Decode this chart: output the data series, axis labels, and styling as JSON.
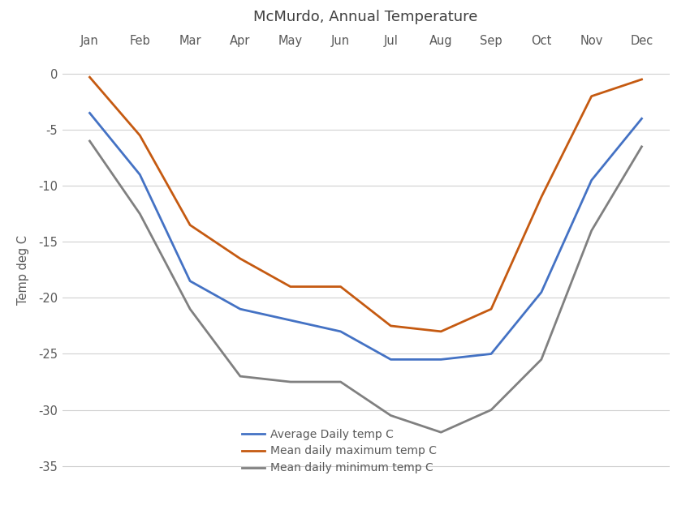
{
  "months": [
    "Jan",
    "Feb",
    "Mar",
    "Apr",
    "May",
    "Jun",
    "Jul",
    "Aug",
    "Sep",
    "Oct",
    "Nov",
    "Dec"
  ],
  "avg_daily": [
    -3.5,
    -9.0,
    -18.5,
    -21.0,
    -22.0,
    -23.0,
    -25.5,
    -25.5,
    -25.0,
    -19.5,
    -9.5,
    -4.0
  ],
  "mean_max": [
    -0.3,
    -5.5,
    -13.5,
    -16.5,
    -19.0,
    -19.0,
    -22.5,
    -23.0,
    -21.0,
    -11.0,
    -2.0,
    -0.5
  ],
  "mean_min": [
    -6.0,
    -12.5,
    -21.0,
    -27.0,
    -27.5,
    -27.5,
    -30.5,
    -32.0,
    -30.0,
    -25.5,
    -14.0,
    -6.5
  ],
  "title": "McMurdo, Annual Temperature",
  "ylabel": "Temp deg C",
  "ylim": [
    -37,
    2
  ],
  "yticks": [
    0,
    -5,
    -10,
    -15,
    -20,
    -25,
    -30,
    -35
  ],
  "color_avg": "#4472C4",
  "color_max": "#C55A11",
  "color_min": "#808080",
  "legend_labels": [
    "Average Daily temp C",
    "Mean daily maximum temp C",
    "Mean daily minimum temp C"
  ],
  "bg_color": "#FFFFFF",
  "grid_color": "#D0D0D0",
  "title_color": "#404040",
  "axis_label_color": "#595959",
  "tick_color": "#595959"
}
